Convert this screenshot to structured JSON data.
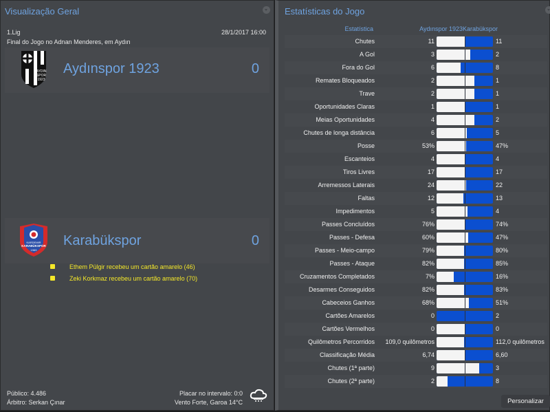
{
  "overview": {
    "title": "Visualização Geral",
    "competition": "1.Lig",
    "datetime": "28/1/2017 16:00",
    "venue_line": "Final do Jogo no Adnan Menderes, em Aydın",
    "home": {
      "name": "Aydınspor 1923",
      "score": "0",
      "crest": "aydinspor-crest-icon"
    },
    "away": {
      "name": "Karabükspor",
      "score": "0",
      "crest": "karabukspor-crest-icon"
    },
    "events": [
      {
        "icon": "yellow-card-icon",
        "text": "Ethem Pülgir recebeu um cartão amarelo (46)"
      },
      {
        "icon": "yellow-card-icon",
        "text": "Zeki Korkmaz recebeu um cartão amarelo (70)"
      }
    ],
    "attendance": "Público: 4.486",
    "referee": "Árbitro: Serkan Çınar",
    "halftime": "Placar no intervalo: 0:0",
    "weather": "Vento Forte, Garoa 14°C",
    "weather_icon": "rain-cloud-icon"
  },
  "stats": {
    "title": "Estatísticas do Jogo",
    "col_stat": "Estatística",
    "col_home": "Aydınspor 1923",
    "col_away": "Karabükspor",
    "colors": {
      "home_bar": "#f4f4f4",
      "away_bar": "#0b4fd0"
    },
    "rows": [
      {
        "label": "Chutes",
        "home": "11",
        "away": "11",
        "home_share": 50
      },
      {
        "label": "A Gol",
        "home": "3",
        "away": "2",
        "home_share": 60
      },
      {
        "label": "Fora do Gol",
        "home": "6",
        "away": "8",
        "home_share": 43
      },
      {
        "label": "Remates Bloqueados",
        "home": "2",
        "away": "1",
        "home_share": 67
      },
      {
        "label": "Trave",
        "home": "2",
        "away": "1",
        "home_share": 67
      },
      {
        "label": "Oportunidades Claras",
        "home": "1",
        "away": "1",
        "home_share": 50
      },
      {
        "label": "Meias Oportunidades",
        "home": "4",
        "away": "2",
        "home_share": 67
      },
      {
        "label": "Chutes de longa distância",
        "home": "6",
        "away": "5",
        "home_share": 54
      },
      {
        "label": "Posse",
        "home": "53%",
        "away": "47%",
        "home_share": 53
      },
      {
        "label": "Escanteios",
        "home": "4",
        "away": "4",
        "home_share": 50
      },
      {
        "label": "Tiros Livres",
        "home": "17",
        "away": "17",
        "home_share": 50
      },
      {
        "label": "Arremessos Laterais",
        "home": "24",
        "away": "22",
        "home_share": 52
      },
      {
        "label": "Faltas",
        "home": "12",
        "away": "13",
        "home_share": 48
      },
      {
        "label": "Impedimentos",
        "home": "5",
        "away": "4",
        "home_share": 55
      },
      {
        "label": "Passes Concluídos",
        "home": "76%",
        "away": "74%",
        "home_share": 50
      },
      {
        "label": "Passes - Defesa",
        "home": "60%",
        "away": "47%",
        "home_share": 56
      },
      {
        "label": "Passes - Meio-campo",
        "home": "79%",
        "away": "80%",
        "home_share": 49
      },
      {
        "label": "Passes - Ataque",
        "home": "82%",
        "away": "85%",
        "home_share": 49
      },
      {
        "label": "Cruzamentos Completados",
        "home": "7%",
        "away": "16%",
        "home_share": 30
      },
      {
        "label": "Desarmes Conseguidos",
        "home": "82%",
        "away": "83%",
        "home_share": 49
      },
      {
        "label": "Cabeceios Ganhos",
        "home": "68%",
        "away": "51%",
        "home_share": 57
      },
      {
        "label": "Cartões Amarelos",
        "home": "0",
        "away": "2",
        "home_share": 0
      },
      {
        "label": "Cartões Vermelhos",
        "home": "0",
        "away": "0",
        "home_share": 50
      },
      {
        "label": "Quilômetros Percorridos",
        "home": "109,0 quilômetros",
        "away": "112,0 quilômetros",
        "home_share": 49
      },
      {
        "label": "Classificação Média",
        "home": "6,74",
        "away": "6,60",
        "home_share": 50
      },
      {
        "label": "Chutes (1ª parte)",
        "home": "9",
        "away": "3",
        "home_share": 75
      },
      {
        "label": "Chutes (2ª parte)",
        "home": "2",
        "away": "8",
        "home_share": 20
      }
    ],
    "customize_label": "Personalizar"
  }
}
